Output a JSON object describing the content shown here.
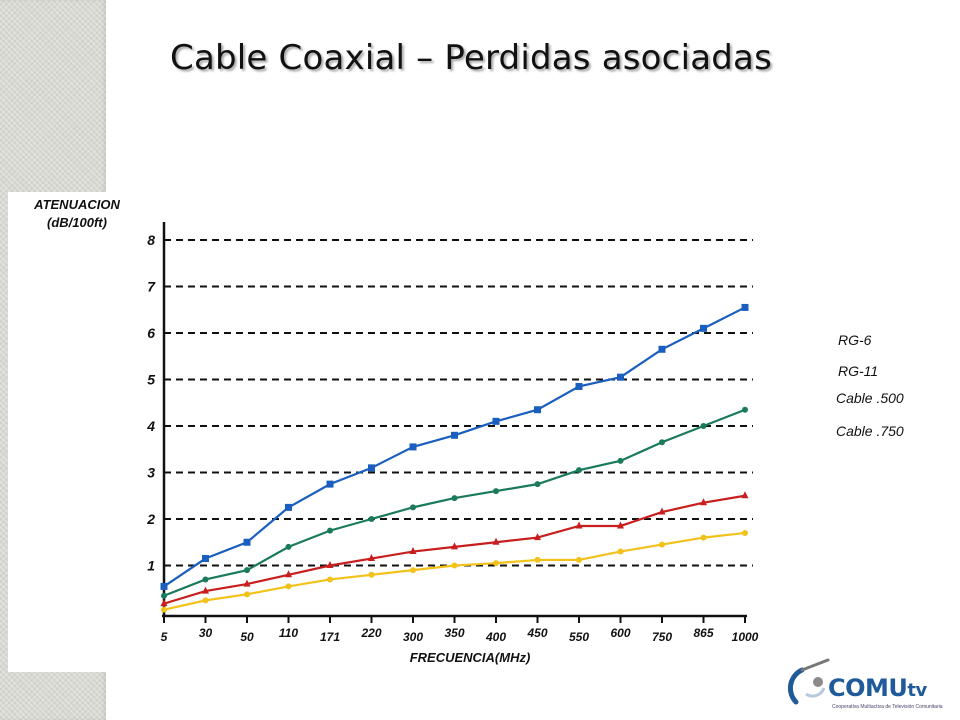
{
  "slide": {
    "title": "Cable Coaxial – Perdidas asociadas"
  },
  "logo": {
    "name_main": "COMU",
    "name_suffix": "tv",
    "tagline": "Cooperativa Multiactiva de Televisión Comunitaria",
    "color": "#1f5b9a"
  },
  "chart_data": {
    "type": "line",
    "ylabel_line1": "ATENUACION",
    "ylabel_line2": "(dB/100ft)",
    "xlabel": "FRECUENCIA(MHz)",
    "categories": [
      "5",
      "30",
      "50",
      "110",
      "171",
      "220",
      "300",
      "350",
      "400",
      "450",
      "550",
      "600",
      "750",
      "865",
      "1000"
    ],
    "y_ticks": [
      1,
      2,
      3,
      4,
      5,
      6,
      7,
      8
    ],
    "ylim": [
      0,
      8.3
    ],
    "grid": "dashed horizontal",
    "legend_position": "right",
    "series": [
      {
        "name": "RG-6",
        "color": "#1a5fbf",
        "marker": "square",
        "values": [
          0.55,
          1.15,
          1.5,
          2.25,
          2.75,
          3.1,
          3.55,
          3.8,
          4.1,
          4.35,
          4.85,
          5.05,
          5.65,
          6.1,
          6.55
        ]
      },
      {
        "name": "RG-11",
        "color": "#1a7a5c",
        "marker": "circle",
        "values": [
          0.35,
          0.7,
          0.9,
          1.4,
          1.75,
          2.0,
          2.25,
          2.45,
          2.6,
          2.75,
          3.05,
          3.25,
          3.65,
          4.0,
          4.35
        ]
      },
      {
        "name": "Cable .500",
        "color": "#c81e1e",
        "marker": "triangle",
        "values": [
          0.18,
          0.45,
          0.6,
          0.8,
          1.0,
          1.15,
          1.3,
          1.4,
          1.5,
          1.6,
          1.85,
          1.85,
          2.15,
          2.35,
          2.5
        ]
      },
      {
        "name": "Cable .750",
        "color": "#f2c21a",
        "marker": "circle",
        "values": [
          0.05,
          0.25,
          0.38,
          0.55,
          0.7,
          0.8,
          0.9,
          1.0,
          1.05,
          1.12,
          1.12,
          1.3,
          1.45,
          1.6,
          1.7
        ]
      }
    ]
  }
}
